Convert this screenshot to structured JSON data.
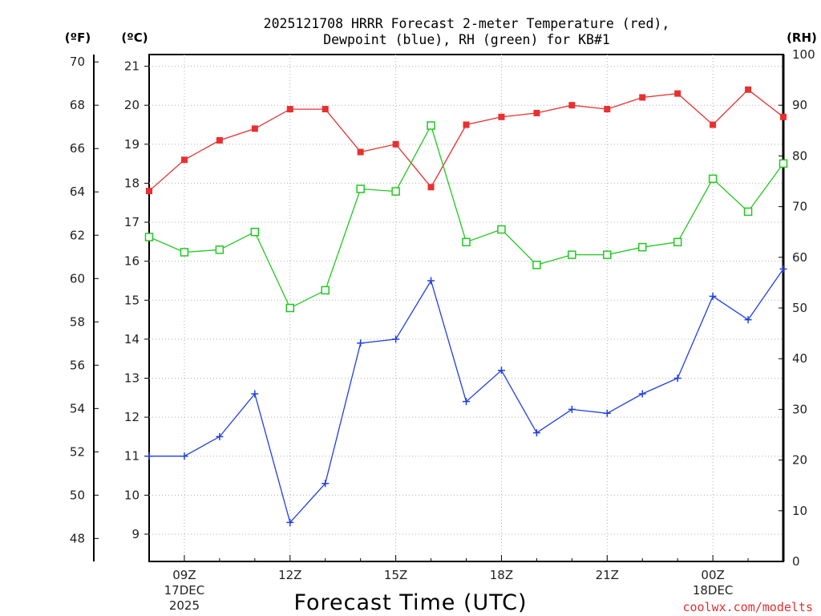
{
  "chart_data": {
    "type": "line",
    "title_lines": [
      "2025121708 HRRR Forecast 2-meter Temperature (red),",
      "Dewpoint (blue), RH (green) for KB#1"
    ],
    "xlabel": "Forecast Time (UTC)",
    "credit": "coolwx.com/modelts",
    "unit_labels": {
      "fahrenheit": "(ºF)",
      "celsius": "(ºC)",
      "rh": "(RH)"
    },
    "x_ticks": [
      {
        "hour": 9,
        "lines": [
          "09Z",
          "17DEC",
          "2025"
        ]
      },
      {
        "hour": 12,
        "lines": [
          "12Z"
        ]
      },
      {
        "hour": 15,
        "lines": [
          "15Z"
        ]
      },
      {
        "hour": 18,
        "lines": [
          "18Z"
        ]
      },
      {
        "hour": 21,
        "lines": [
          "21Z"
        ]
      },
      {
        "hour": 24,
        "lines": [
          "00Z",
          "18DEC"
        ]
      }
    ],
    "x_range": [
      8,
      26
    ],
    "celsius_axis": {
      "range": [
        8.3,
        21.3
      ],
      "ticks": [
        9,
        10,
        11,
        12,
        13,
        14,
        15,
        16,
        17,
        18,
        19,
        20,
        21
      ]
    },
    "fahrenheit_axis": {
      "ticks": [
        48,
        50,
        52,
        54,
        56,
        58,
        60,
        62,
        64,
        66,
        68,
        70
      ]
    },
    "rh_axis": {
      "range": [
        0,
        100
      ],
      "ticks": [
        0,
        10,
        20,
        30,
        40,
        50,
        60,
        70,
        80,
        90,
        100
      ]
    },
    "grid": true,
    "series": [
      {
        "name": "Temperature (red)",
        "axis": "celsius",
        "color": "#e83030",
        "marker": "filled-square",
        "x": [
          8,
          9,
          10,
          11,
          12,
          13,
          14,
          15,
          16,
          17,
          18,
          19,
          20,
          21,
          22,
          23,
          24,
          25,
          26
        ],
        "values": [
          17.8,
          18.6,
          19.1,
          19.4,
          19.9,
          19.9,
          18.8,
          19.0,
          17.9,
          19.5,
          19.7,
          19.8,
          20.0,
          19.9,
          20.2,
          20.3,
          19.5,
          20.4,
          19.7
        ]
      },
      {
        "name": "Dewpoint (blue)",
        "axis": "celsius",
        "color": "#2040e0",
        "marker": "plus",
        "x": [
          8,
          9,
          10,
          11,
          12,
          13,
          14,
          15,
          16,
          17,
          18,
          19,
          20,
          21,
          22,
          23,
          24,
          25,
          26
        ],
        "values": [
          11.0,
          11.0,
          11.5,
          12.6,
          9.3,
          10.3,
          13.9,
          14.0,
          15.5,
          12.4,
          13.2,
          11.6,
          12.2,
          12.1,
          12.6,
          13.0,
          15.1,
          14.5,
          15.8
        ]
      },
      {
        "name": "RH (green)",
        "axis": "rh",
        "color": "#20c820",
        "marker": "open-square",
        "x": [
          8,
          9,
          10,
          11,
          12,
          13,
          14,
          15,
          16,
          17,
          18,
          19,
          20,
          21,
          22,
          23,
          24,
          25,
          26
        ],
        "values": [
          64,
          61,
          61.5,
          65,
          50,
          53.5,
          73.5,
          73,
          86,
          63,
          65.5,
          58.5,
          60.5,
          60.5,
          62,
          63,
          75.5,
          69,
          78.5
        ]
      }
    ]
  }
}
